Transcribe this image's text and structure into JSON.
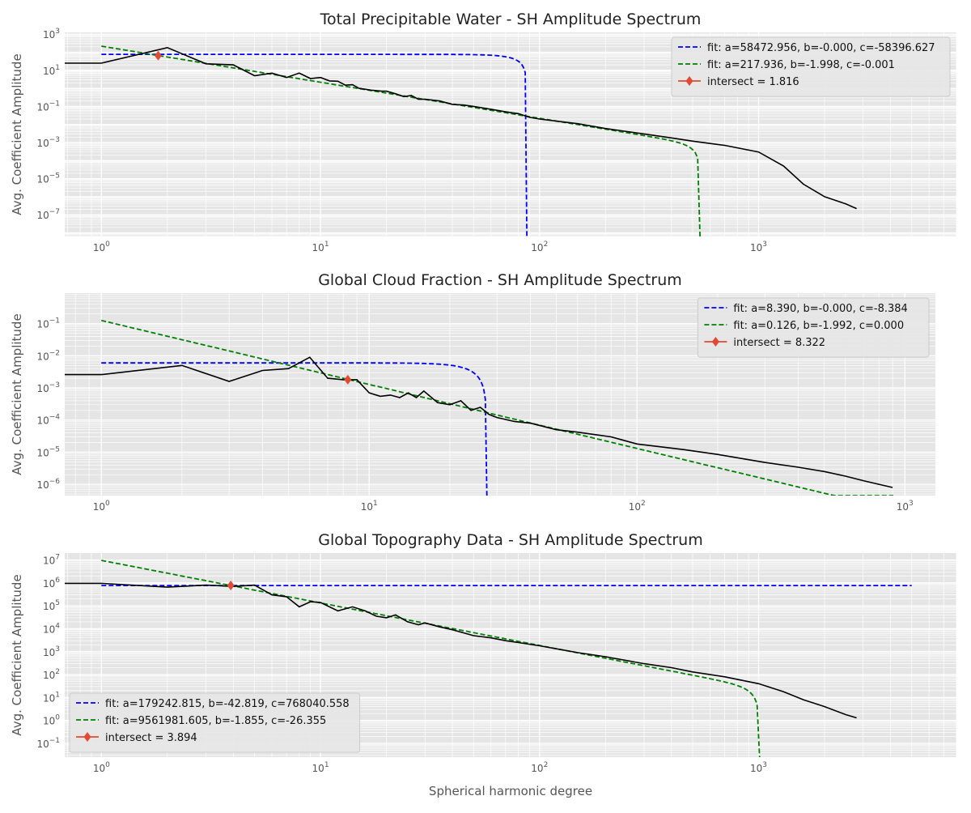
{
  "figure": {
    "xlabel": "Spherical harmonic degree",
    "ylabel": "Avg. Coefficient Amplitude"
  },
  "chart_data": [
    {
      "type": "line",
      "title": "Total Precipitable Water - SH Amplitude Spectrum",
      "xlabel": "",
      "ylabel": "Avg. Coefficient Amplitude",
      "xscale": "log",
      "yscale": "log",
      "xlim": [
        0.68,
        8000
      ],
      "ylim_log10": [
        -8.2,
        3.1
      ],
      "xticks": [
        "10^0",
        "10^1",
        "10^2",
        "10^3"
      ],
      "yticks": [
        "10^-7",
        "10^-5",
        "10^-3",
        "10^-1",
        "10^1",
        "10^3"
      ],
      "grid": true,
      "legend": {
        "position": "top-right",
        "entries": [
          {
            "label": "fit: a=58472.956, b=-0.000, c=-58396.627",
            "color": "#0000ff",
            "style": "dashed"
          },
          {
            "label": "fit: a=217.936, b=-1.998, c=-0.001",
            "color": "#008000",
            "style": "dashed"
          },
          {
            "label": "intersect = 1.816",
            "color": "#e24a33",
            "style": "diamond"
          }
        ]
      },
      "series": [
        {
          "color": "#000000",
          "style": "solid",
          "points": [
            [
              0.5,
              25
            ],
            [
              1,
              25
            ],
            [
              2,
              180
            ],
            [
              3,
              23
            ],
            [
              4,
              20
            ],
            [
              5,
              5
            ],
            [
              6,
              7
            ],
            [
              7,
              4
            ],
            [
              8,
              7
            ],
            [
              9,
              3.5
            ],
            [
              10,
              4
            ],
            [
              11,
              2.6
            ],
            [
              12,
              2.5
            ],
            [
              13,
              1.5
            ],
            [
              14,
              1.6
            ],
            [
              15,
              1.0
            ],
            [
              16,
              0.9
            ],
            [
              17,
              0.8
            ],
            [
              18,
              0.75
            ],
            [
              19,
              0.7
            ],
            [
              20,
              0.7
            ],
            [
              22,
              0.5
            ],
            [
              24,
              0.35
            ],
            [
              26,
              0.4
            ],
            [
              28,
              0.25
            ],
            [
              30,
              0.25
            ],
            [
              35,
              0.2
            ],
            [
              40,
              0.13
            ],
            [
              45,
              0.12
            ],
            [
              50,
              0.1
            ],
            [
              60,
              0.07
            ],
            [
              70,
              0.05
            ],
            [
              80,
              0.04
            ],
            [
              90,
              0.025
            ],
            [
              100,
              0.02
            ],
            [
              150,
              0.011
            ],
            [
              200,
              0.006
            ],
            [
              300,
              0.003
            ],
            [
              400,
              0.0018
            ],
            [
              500,
              0.0012
            ],
            [
              700,
              0.0007
            ],
            [
              1000,
              0.0003
            ],
            [
              1300,
              5e-05
            ],
            [
              1600,
              5e-06
            ],
            [
              2000,
              1e-06
            ],
            [
              2500,
              4e-07
            ],
            [
              2800,
              2.2e-07
            ]
          ]
        }
      ],
      "fits": [
        {
          "kind": "exp",
          "a": 58472.956,
          "b": -0.0,
          "c": -58396.627,
          "x_end": 87.5,
          "color": "#0000ff"
        },
        {
          "kind": "pow",
          "a": 217.936,
          "b": -1.998,
          "c": -0.001,
          "x_end": 540,
          "color": "#008000"
        }
      ],
      "intersect": {
        "x": 1.816,
        "y": 65
      }
    },
    {
      "type": "line",
      "title": "Global Cloud Fraction - SH Amplitude Spectrum",
      "xlabel": "",
      "ylabel": "Avg. Coefficient Amplitude",
      "xscale": "log",
      "yscale": "log",
      "xlim": [
        0.73,
        1300
      ],
      "ylim_log10": [
        -6.35,
        -0.05
      ],
      "xticks": [
        "10^0",
        "10^1",
        "10^2",
        "10^3"
      ],
      "yticks": [
        "10^-6",
        "10^-5",
        "10^-4",
        "10^-3",
        "10^-2",
        "10^-1"
      ],
      "grid": true,
      "legend": {
        "position": "top-right",
        "entries": [
          {
            "label": "fit: a=8.390, b=-0.000, c=-8.384",
            "color": "#0000ff",
            "style": "dashed"
          },
          {
            "label": "fit: a=0.126, b=-1.992, c=0.000",
            "color": "#008000",
            "style": "dashed"
          },
          {
            "label": "intersect = 8.322",
            "color": "#e24a33",
            "style": "diamond"
          }
        ]
      },
      "series": [
        {
          "color": "#000000",
          "style": "solid",
          "points": [
            [
              0.5,
              0.0026
            ],
            [
              1,
              0.0026
            ],
            [
              2,
              0.005
            ],
            [
              3,
              0.0016
            ],
            [
              4,
              0.0035
            ],
            [
              5,
              0.004
            ],
            [
              6,
              0.009
            ],
            [
              7,
              0.002
            ],
            [
              8,
              0.0018
            ],
            [
              9,
              0.0018
            ],
            [
              10,
              0.0007
            ],
            [
              11,
              0.00055
            ],
            [
              12,
              0.0006
            ],
            [
              13,
              0.0005
            ],
            [
              14,
              0.0007
            ],
            [
              15,
              0.0005
            ],
            [
              16,
              0.0008
            ],
            [
              18,
              0.00035
            ],
            [
              20,
              0.0003
            ],
            [
              22,
              0.0004
            ],
            [
              24,
              0.0002
            ],
            [
              26,
              0.00025
            ],
            [
              28,
              0.00015
            ],
            [
              30,
              0.00012
            ],
            [
              35,
              9e-05
            ],
            [
              40,
              8e-05
            ],
            [
              50,
              5e-05
            ],
            [
              60,
              4.2e-05
            ],
            [
              70,
              3.5e-05
            ],
            [
              80,
              3e-05
            ],
            [
              100,
              1.8e-05
            ],
            [
              120,
              1.5e-05
            ],
            [
              150,
              1.2e-05
            ],
            [
              200,
              8.5e-06
            ],
            [
              300,
              4.8e-06
            ],
            [
              400,
              3.4e-06
            ],
            [
              500,
              2.5e-06
            ],
            [
              600,
              1.8e-06
            ],
            [
              700,
              1.3e-06
            ],
            [
              800,
              1e-06
            ],
            [
              900,
              8e-07
            ]
          ]
        }
      ],
      "fits": [
        {
          "kind": "exp",
          "a": 8.39,
          "b": -0.0,
          "c": -8.384,
          "x_end": 27.5,
          "color": "#0000ff"
        },
        {
          "kind": "pow",
          "a": 0.126,
          "b": -1.992,
          "c": 0.0,
          "x_end": 900,
          "color": "#008000"
        }
      ],
      "intersect": {
        "x": 8.322,
        "y": 0.0018
      }
    },
    {
      "type": "line",
      "title": "Global Topography Data - SH Amplitude Spectrum",
      "xlabel": "Spherical harmonic degree",
      "ylabel": "Avg. Coefficient Amplitude",
      "xscale": "log",
      "yscale": "log",
      "xlim": [
        0.68,
        8000
      ],
      "ylim_log10": [
        -1.6,
        7.3
      ],
      "xticks": [
        "10^0",
        "10^1",
        "10^2",
        "10^3"
      ],
      "yticks": [
        "10^-1",
        "10^0",
        "10^1",
        "10^2",
        "10^3",
        "10^4",
        "10^5",
        "10^6",
        "10^7"
      ],
      "grid": true,
      "legend": {
        "position": "bottom-left",
        "entries": [
          {
            "label": "fit: a=179242.815, b=-42.819, c=768040.558",
            "color": "#0000ff",
            "style": "dashed"
          },
          {
            "label": "fit: a=9561981.605, b=-1.855, c=-26.355",
            "color": "#008000",
            "style": "dashed"
          },
          {
            "label": "intersect = 3.894",
            "color": "#e24a33",
            "style": "diamond"
          }
        ]
      },
      "series": [
        {
          "color": "#000000",
          "style": "solid",
          "points": [
            [
              0.5,
              950000
            ],
            [
              1,
              950000
            ],
            [
              2,
              650000
            ],
            [
              3,
              800000
            ],
            [
              4,
              700000
            ],
            [
              5,
              800000
            ],
            [
              6,
              300000
            ],
            [
              7,
              250000
            ],
            [
              8,
              90000
            ],
            [
              9,
              150000
            ],
            [
              10,
              140000
            ],
            [
              12,
              60000
            ],
            [
              14,
              90000
            ],
            [
              16,
              60000
            ],
            [
              18,
              35000
            ],
            [
              20,
              30000
            ],
            [
              22,
              40000
            ],
            [
              25,
              20000
            ],
            [
              28,
              15000
            ],
            [
              30,
              18000
            ],
            [
              35,
              12000
            ],
            [
              40,
              9000
            ],
            [
              50,
              5000
            ],
            [
              60,
              4000
            ],
            [
              70,
              3000
            ],
            [
              80,
              2500
            ],
            [
              100,
              1800
            ],
            [
              150,
              900
            ],
            [
              200,
              600
            ],
            [
              300,
              300
            ],
            [
              400,
              200
            ],
            [
              500,
              130
            ],
            [
              700,
              80
            ],
            [
              1000,
              40
            ],
            [
              1300,
              18
            ],
            [
              1600,
              8
            ],
            [
              2000,
              4
            ],
            [
              2500,
              1.8
            ],
            [
              2800,
              1.3
            ]
          ]
        }
      ],
      "fits": [
        {
          "kind": "const",
          "value": 768040.558,
          "x_end": 5000,
          "color": "#0000ff"
        },
        {
          "kind": "pow",
          "a": 9561981.605,
          "b": -1.855,
          "c": -26.355,
          "x_end": 1010,
          "color": "#008000"
        }
      ],
      "intersect": {
        "x": 3.894,
        "y": 768040
      }
    }
  ]
}
